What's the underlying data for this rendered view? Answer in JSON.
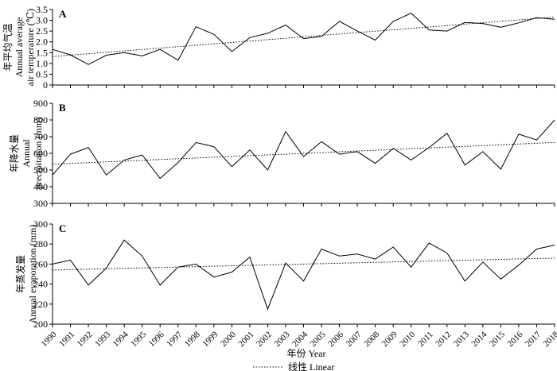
{
  "figure": {
    "xlabel": "年份 Year",
    "legend": {
      "label": "线性 Linear",
      "placement": "bottom-center"
    }
  },
  "chart_data": [
    {
      "type": "line",
      "panel_label": "A",
      "ylabel_lines": [
        "年平均气温",
        "Annual average",
        "air temperature (℃)"
      ],
      "ylim": [
        0,
        3.5
      ],
      "yticks": [
        "0",
        "0.5",
        "1.0",
        "1.5",
        "2.0",
        "2.5",
        "3.0",
        "3.5"
      ],
      "x": [
        1990,
        1991,
        1992,
        1993,
        1994,
        1995,
        1996,
        1997,
        1998,
        1999,
        2000,
        2001,
        2002,
        2003,
        2004,
        2005,
        2006,
        2007,
        2008,
        2009,
        2010,
        2011,
        2012,
        2013,
        2014,
        2015,
        2016,
        2017,
        2018
      ],
      "series": [
        {
          "values": [
            1.65,
            1.4,
            0.95,
            1.38,
            1.5,
            1.35,
            1.65,
            1.15,
            2.7,
            2.35,
            1.55,
            2.2,
            2.4,
            2.78,
            2.15,
            2.25,
            2.95,
            2.5,
            2.08,
            2.95,
            3.33,
            2.55,
            2.5,
            2.9,
            2.85,
            2.68,
            2.88,
            3.12,
            3.05
          ]
        }
      ],
      "trend": {
        "start": 1.32,
        "end": 3.15
      }
    },
    {
      "type": "line",
      "panel_label": "B",
      "ylabel_lines": [
        "年降水量",
        "Annual",
        "precipitation (mm)"
      ],
      "ylim": [
        300,
        900
      ],
      "yticks": [
        "300",
        "400",
        "500",
        "600",
        "700",
        "800",
        "900"
      ],
      "x": [
        1990,
        1991,
        1992,
        1993,
        1994,
        1995,
        1996,
        1997,
        1998,
        1999,
        2000,
        2001,
        2002,
        2003,
        2004,
        2005,
        2006,
        2007,
        2008,
        2009,
        2010,
        2011,
        2012,
        2013,
        2014,
        2015,
        2016,
        2017,
        2018
      ],
      "series": [
        {
          "values": [
            470,
            595,
            635,
            470,
            560,
            590,
            450,
            545,
            665,
            640,
            520,
            620,
            500,
            730,
            580,
            670,
            595,
            610,
            540,
            630,
            560,
            635,
            720,
            530,
            610,
            505,
            715,
            680,
            800
          ]
        }
      ],
      "trend": {
        "start": 535,
        "end": 665
      }
    },
    {
      "type": "line",
      "panel_label": "C",
      "ylabel_lines": [
        "年蒸发量",
        "Annual evaporation (mm)"
      ],
      "ylim": [
        200,
        300
      ],
      "yticks": [
        "200",
        "220",
        "240",
        "260",
        "280",
        "300"
      ],
      "x": [
        1990,
        1991,
        1992,
        1993,
        1994,
        1995,
        1996,
        1997,
        1998,
        1999,
        2000,
        2001,
        2002,
        2003,
        2004,
        2005,
        2006,
        2007,
        2008,
        2009,
        2010,
        2011,
        2012,
        2013,
        2014,
        2015,
        2016,
        2017,
        2018
      ],
      "series": [
        {
          "values": [
            260,
            264,
            239,
            256,
            284,
            268,
            239,
            257,
            260,
            247,
            252,
            267,
            215,
            261,
            243,
            275,
            268,
            270,
            265,
            277,
            257,
            281,
            271,
            243,
            262,
            245,
            259,
            275,
            279
          ]
        }
      ],
      "trend": {
        "start": 254,
        "end": 266
      }
    }
  ]
}
